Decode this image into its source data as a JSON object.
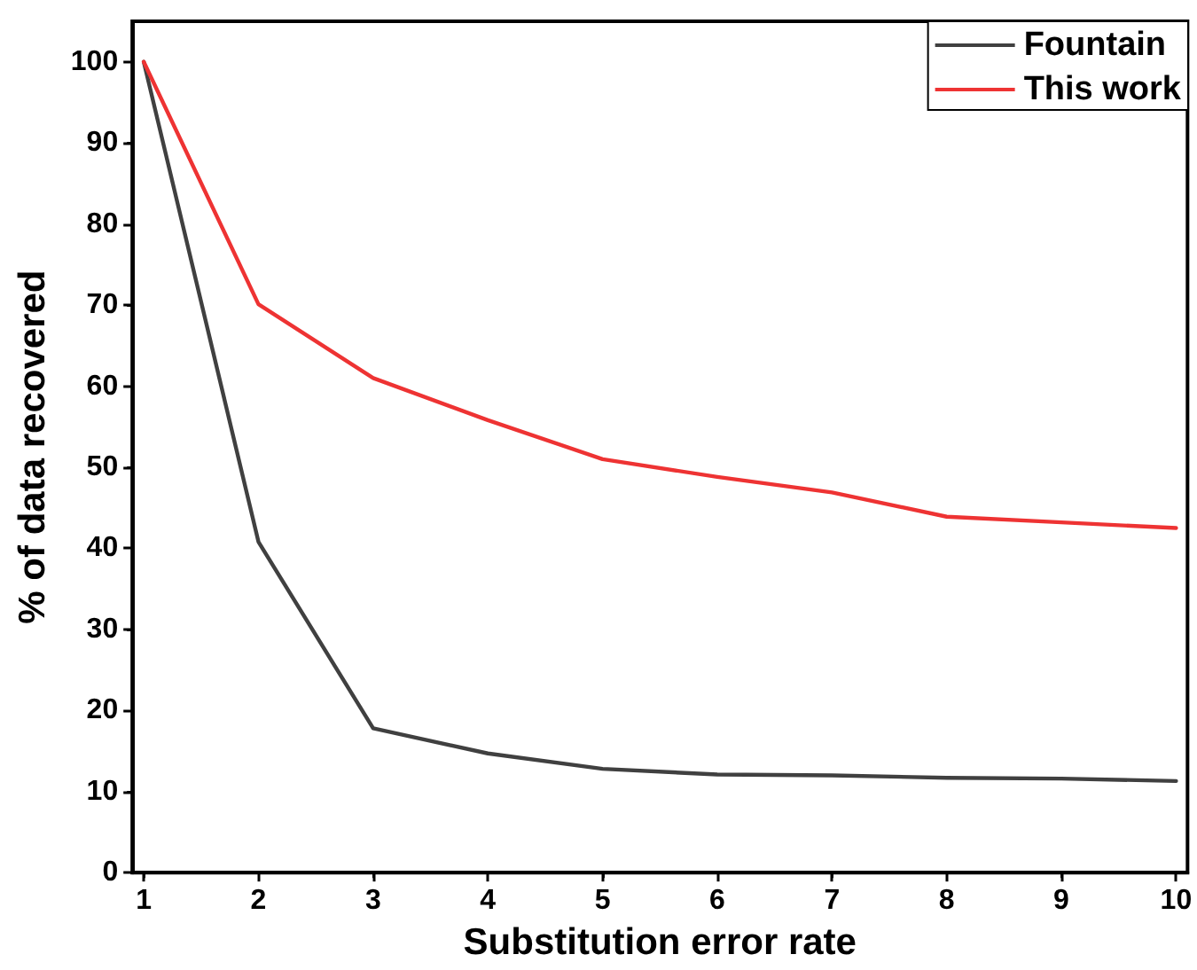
{
  "chart_data": {
    "type": "line",
    "xlabel": "Substitution error rate",
    "ylabel": "% of data recovered",
    "x": [
      1,
      2,
      3,
      4,
      5,
      6,
      7,
      8,
      9,
      10
    ],
    "series": [
      {
        "name": "Fountain",
        "color": "#404040",
        "values": [
          100,
          40.8,
          17.8,
          14.7,
          12.8,
          12.1,
          12.0,
          11.7,
          11.6,
          11.3
        ]
      },
      {
        "name": "This work",
        "color": "#ee3333",
        "values": [
          100,
          70.1,
          61,
          55.8,
          51,
          48.8,
          46.9,
          43.9,
          43.2,
          42.5
        ]
      }
    ],
    "xlim": [
      0.9,
      10.1
    ],
    "xticks": [
      1,
      2,
      3,
      4,
      5,
      6,
      7,
      8,
      9,
      10
    ],
    "ylim": [
      0,
      105
    ],
    "yticks": [
      0,
      10,
      20,
      30,
      40,
      50,
      60,
      70,
      80,
      90,
      100
    ],
    "grid": false,
    "legend": "top right",
    "marker": "none",
    "line_style": "solid"
  }
}
